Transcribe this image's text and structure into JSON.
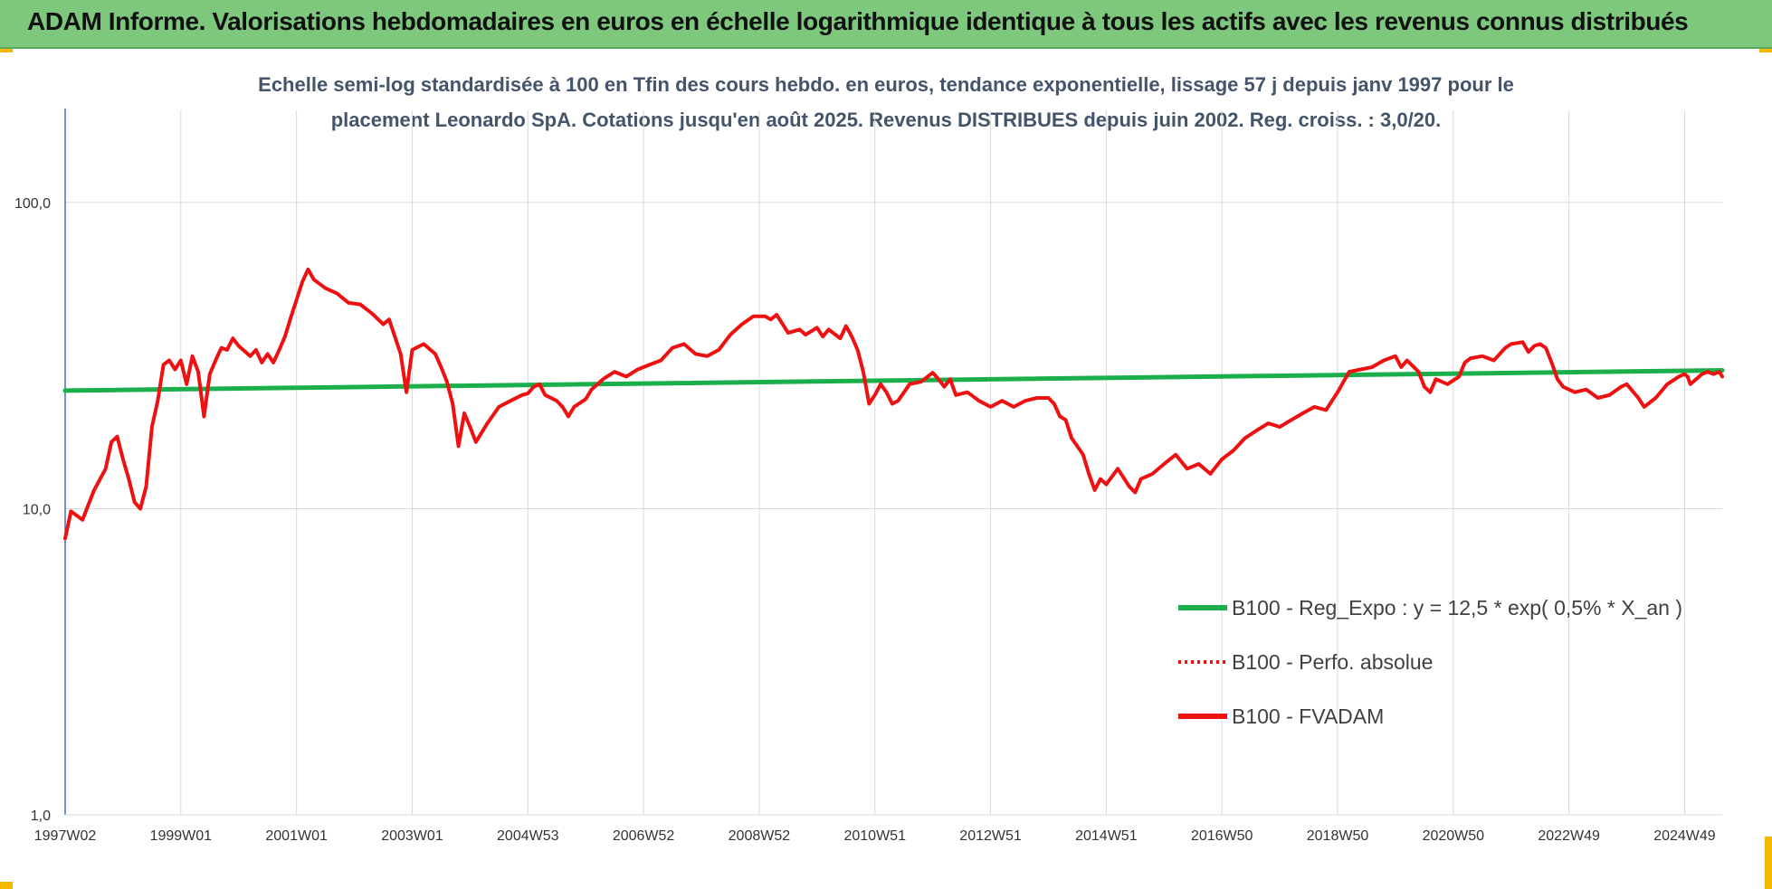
{
  "banner": {
    "title": "ADAM Informe. Valorisations hebdomadaires en euros en échelle logarithmique identique à tous les actifs avec les revenus connus distribués"
  },
  "colors": {
    "banner_bg": "#7dc87d",
    "regression": "#1aaf4b",
    "fvadam": "#ee1111",
    "perfo": "#ee1111",
    "gridline": "#d9d9d9",
    "axis": "#4472c4"
  },
  "chart_data": {
    "type": "line",
    "subtitle_lines": [
      "Echelle semi-log standardisée à 100 en Tfin des cours hebdo. en euros, tendance exponentielle, lissage 57 j depuis janv 1997 pour le",
      "placement Leonardo SpA. Cotations jusqu'en août 2025. Revenus DISTRIBUES depuis juin 2002. Reg. croiss. : 3,0/20."
    ],
    "y_scale": "log",
    "ylim": [
      1,
      200
    ],
    "yticks": [
      {
        "value": 1,
        "label": "1,0"
      },
      {
        "value": 10,
        "label": "10,0"
      },
      {
        "value": 100,
        "label": "100,0"
      }
    ],
    "xlim": [
      1997.0,
      2025.65
    ],
    "xticks": [
      {
        "value": 1997.0,
        "label": "1997W02"
      },
      {
        "value": 1999.0,
        "label": "1999W01"
      },
      {
        "value": 2001.0,
        "label": "2001W01"
      },
      {
        "value": 2003.0,
        "label": "2003W01"
      },
      {
        "value": 2005.0,
        "label": "2004W53"
      },
      {
        "value": 2007.0,
        "label": "2006W52"
      },
      {
        "value": 2009.0,
        "label": "2008W52"
      },
      {
        "value": 2011.0,
        "label": "2010W51"
      },
      {
        "value": 2013.0,
        "label": "2012W51"
      },
      {
        "value": 2015.0,
        "label": "2014W51"
      },
      {
        "value": 2017.0,
        "label": "2016W50"
      },
      {
        "value": 2019.0,
        "label": "2018W50"
      },
      {
        "value": 2021.0,
        "label": "2020W50"
      },
      {
        "value": 2023.0,
        "label": "2022W49"
      },
      {
        "value": 2025.0,
        "label": "2024W49"
      }
    ],
    "grid": true,
    "legend_position": "lower-right",
    "series": [
      {
        "name": "B100 - Reg_Expo : y = 12,5 * exp( 0,5% *  X_an )",
        "style": "solid-green",
        "points": [
          [
            1997.0,
            24.3
          ],
          [
            2025.65,
            28.3
          ]
        ]
      },
      {
        "name": "B100 - Perfo. absolue",
        "style": "dotted-red",
        "points": []
      },
      {
        "name": "B100 - FVADAM",
        "style": "solid-red",
        "points": [
          [
            1997.0,
            8.0
          ],
          [
            1997.1,
            9.8
          ],
          [
            1997.3,
            9.2
          ],
          [
            1997.5,
            11.5
          ],
          [
            1997.7,
            13.5
          ],
          [
            1997.8,
            16.5
          ],
          [
            1997.9,
            17.2
          ],
          [
            1998.0,
            14.5
          ],
          [
            1998.1,
            12.5
          ],
          [
            1998.2,
            10.5
          ],
          [
            1998.3,
            10.0
          ],
          [
            1998.4,
            11.8
          ],
          [
            1998.5,
            18.5
          ],
          [
            1998.6,
            22.5
          ],
          [
            1998.7,
            29.5
          ],
          [
            1998.8,
            30.5
          ],
          [
            1998.9,
            28.5
          ],
          [
            1999.0,
            30.5
          ],
          [
            1999.1,
            25.5
          ],
          [
            1999.2,
            31.5
          ],
          [
            1999.3,
            28.0
          ],
          [
            1999.4,
            20.0
          ],
          [
            1999.5,
            27.5
          ],
          [
            1999.6,
            30.5
          ],
          [
            1999.7,
            33.5
          ],
          [
            1999.8,
            33.0
          ],
          [
            1999.9,
            36.0
          ],
          [
            2000.0,
            34.0
          ],
          [
            2000.2,
            31.5
          ],
          [
            2000.3,
            33.0
          ],
          [
            2000.4,
            30.0
          ],
          [
            2000.5,
            32.0
          ],
          [
            2000.6,
            30.0
          ],
          [
            2000.7,
            33.0
          ],
          [
            2000.8,
            36.5
          ],
          [
            2000.9,
            42.0
          ],
          [
            2001.0,
            48.0
          ],
          [
            2001.1,
            55.0
          ],
          [
            2001.2,
            60.5
          ],
          [
            2001.3,
            56.0
          ],
          [
            2001.5,
            52.5
          ],
          [
            2001.7,
            50.5
          ],
          [
            2001.9,
            47.0
          ],
          [
            2002.1,
            46.5
          ],
          [
            2002.3,
            43.5
          ],
          [
            2002.5,
            40.0
          ],
          [
            2002.6,
            41.5
          ],
          [
            2002.7,
            36.5
          ],
          [
            2002.8,
            32.0
          ],
          [
            2002.9,
            24.0
          ],
          [
            2003.0,
            33.0
          ],
          [
            2003.2,
            34.5
          ],
          [
            2003.4,
            32.0
          ],
          [
            2003.5,
            29.0
          ],
          [
            2003.6,
            26.0
          ],
          [
            2003.7,
            22.0
          ],
          [
            2003.8,
            16.0
          ],
          [
            2003.9,
            20.5
          ],
          [
            2004.0,
            18.5
          ],
          [
            2004.1,
            16.5
          ],
          [
            2004.3,
            19.0
          ],
          [
            2004.5,
            21.5
          ],
          [
            2004.7,
            22.5
          ],
          [
            2004.9,
            23.5
          ],
          [
            2005.0,
            23.8
          ],
          [
            2005.1,
            25.0
          ],
          [
            2005.2,
            25.5
          ],
          [
            2005.3,
            23.5
          ],
          [
            2005.5,
            22.5
          ],
          [
            2005.6,
            21.5
          ],
          [
            2005.7,
            20.0
          ],
          [
            2005.8,
            21.5
          ],
          [
            2006.0,
            22.8
          ],
          [
            2006.1,
            24.5
          ],
          [
            2006.3,
            26.5
          ],
          [
            2006.5,
            28.0
          ],
          [
            2006.7,
            27.0
          ],
          [
            2006.9,
            28.5
          ],
          [
            2007.1,
            29.5
          ],
          [
            2007.3,
            30.5
          ],
          [
            2007.5,
            33.5
          ],
          [
            2007.7,
            34.5
          ],
          [
            2007.9,
            32.0
          ],
          [
            2008.1,
            31.5
          ],
          [
            2008.3,
            33.0
          ],
          [
            2008.5,
            37.0
          ],
          [
            2008.7,
            40.0
          ],
          [
            2008.9,
            42.5
          ],
          [
            2009.1,
            42.5
          ],
          [
            2009.2,
            41.5
          ],
          [
            2009.3,
            43.0
          ],
          [
            2009.5,
            37.5
          ],
          [
            2009.7,
            38.5
          ],
          [
            2009.8,
            37.0
          ],
          [
            2010.0,
            39.0
          ],
          [
            2010.1,
            36.5
          ],
          [
            2010.2,
            38.5
          ],
          [
            2010.4,
            36.0
          ],
          [
            2010.5,
            39.5
          ],
          [
            2010.6,
            36.5
          ],
          [
            2010.7,
            33.0
          ],
          [
            2010.8,
            28.0
          ],
          [
            2010.9,
            22.0
          ],
          [
            2011.0,
            23.5
          ],
          [
            2011.1,
            25.5
          ],
          [
            2011.2,
            24.0
          ],
          [
            2011.3,
            22.0
          ],
          [
            2011.4,
            22.5
          ],
          [
            2011.6,
            25.5
          ],
          [
            2011.8,
            26.0
          ],
          [
            2012.0,
            27.8
          ],
          [
            2012.1,
            26.5
          ],
          [
            2012.2,
            25.0
          ],
          [
            2012.3,
            26.5
          ],
          [
            2012.4,
            23.5
          ],
          [
            2012.6,
            24.0
          ],
          [
            2012.8,
            22.5
          ],
          [
            2013.0,
            21.5
          ],
          [
            2013.2,
            22.5
          ],
          [
            2013.4,
            21.5
          ],
          [
            2013.6,
            22.5
          ],
          [
            2013.8,
            23.0
          ],
          [
            2014.0,
            23.0
          ],
          [
            2014.1,
            22.0
          ],
          [
            2014.2,
            20.0
          ],
          [
            2014.3,
            19.5
          ],
          [
            2014.4,
            17.0
          ],
          [
            2014.5,
            16.0
          ],
          [
            2014.6,
            15.0
          ],
          [
            2014.7,
            13.0
          ],
          [
            2014.8,
            11.5
          ],
          [
            2014.9,
            12.5
          ],
          [
            2015.0,
            12.0
          ],
          [
            2015.2,
            13.5
          ],
          [
            2015.4,
            11.8
          ],
          [
            2015.5,
            11.3
          ],
          [
            2015.6,
            12.5
          ],
          [
            2015.8,
            13.0
          ],
          [
            2016.0,
            14.0
          ],
          [
            2016.2,
            15.0
          ],
          [
            2016.4,
            13.5
          ],
          [
            2016.6,
            14.0
          ],
          [
            2016.8,
            13.0
          ],
          [
            2017.0,
            14.5
          ],
          [
            2017.2,
            15.5
          ],
          [
            2017.4,
            17.0
          ],
          [
            2017.6,
            18.0
          ],
          [
            2017.8,
            19.0
          ],
          [
            2018.0,
            18.5
          ],
          [
            2018.2,
            19.5
          ],
          [
            2018.4,
            20.5
          ],
          [
            2018.6,
            21.5
          ],
          [
            2018.8,
            21.0
          ],
          [
            2019.0,
            24.0
          ],
          [
            2019.2,
            28.0
          ],
          [
            2019.4,
            28.5
          ],
          [
            2019.6,
            29.0
          ],
          [
            2019.8,
            30.5
          ],
          [
            2020.0,
            31.5
          ],
          [
            2020.1,
            29.0
          ],
          [
            2020.2,
            30.5
          ],
          [
            2020.4,
            28.0
          ],
          [
            2020.5,
            25.0
          ],
          [
            2020.6,
            24.0
          ],
          [
            2020.7,
            26.5
          ],
          [
            2020.9,
            25.5
          ],
          [
            2021.1,
            27.0
          ],
          [
            2021.2,
            30.0
          ],
          [
            2021.3,
            31.0
          ],
          [
            2021.5,
            31.5
          ],
          [
            2021.7,
            30.5
          ],
          [
            2021.9,
            33.5
          ],
          [
            2022.0,
            34.5
          ],
          [
            2022.2,
            35.0
          ],
          [
            2022.3,
            32.5
          ],
          [
            2022.4,
            34.0
          ],
          [
            2022.5,
            34.5
          ],
          [
            2022.6,
            33.5
          ],
          [
            2022.7,
            30.0
          ],
          [
            2022.8,
            26.5
          ],
          [
            2022.9,
            25.0
          ],
          [
            2023.1,
            24.0
          ],
          [
            2023.3,
            24.5
          ],
          [
            2023.5,
            23.0
          ],
          [
            2023.7,
            23.5
          ],
          [
            2023.9,
            25.0
          ],
          [
            2024.0,
            25.5
          ],
          [
            2024.2,
            23.0
          ],
          [
            2024.3,
            21.5
          ],
          [
            2024.5,
            23.0
          ],
          [
            2024.7,
            25.5
          ],
          [
            2024.9,
            27.0
          ],
          [
            2025.0,
            27.5
          ],
          [
            2025.05,
            27.0
          ],
          [
            2025.1,
            25.5
          ],
          [
            2025.2,
            26.5
          ],
          [
            2025.3,
            27.5
          ],
          [
            2025.4,
            28.0
          ],
          [
            2025.5,
            27.5
          ],
          [
            2025.6,
            28.0
          ],
          [
            2025.65,
            27.0
          ]
        ]
      }
    ]
  }
}
